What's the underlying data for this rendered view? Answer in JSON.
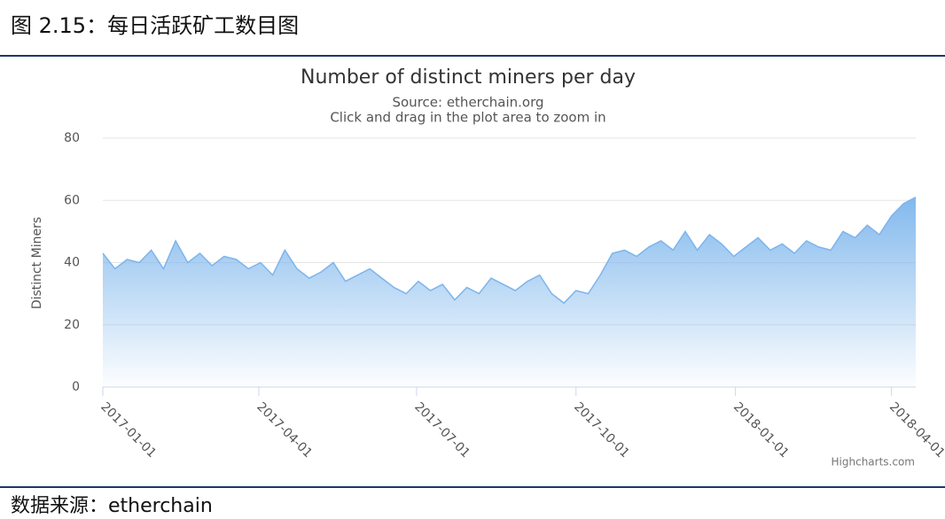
{
  "header": {
    "title": "图 2.15：每日活跃矿工数目图"
  },
  "chart_data": {
    "type": "area",
    "title": "Number of distinct miners per day",
    "subtitle": "Source: etherchain.org",
    "note": "Click and drag in the plot area to zoom in",
    "y_label": "Distinct Miners",
    "credits": "Highcharts.com",
    "color": "#7cb5ec",
    "grid": true,
    "x": [
      "2017-01-01",
      "2017-01-08",
      "2017-01-15",
      "2017-01-22",
      "2017-01-29",
      "2017-02-05",
      "2017-02-12",
      "2017-02-19",
      "2017-02-26",
      "2017-03-05",
      "2017-03-12",
      "2017-03-19",
      "2017-03-26",
      "2017-04-02",
      "2017-04-09",
      "2017-04-16",
      "2017-04-23",
      "2017-04-30",
      "2017-05-07",
      "2017-05-14",
      "2017-05-21",
      "2017-05-28",
      "2017-06-04",
      "2017-06-11",
      "2017-06-18",
      "2017-06-25",
      "2017-07-02",
      "2017-07-09",
      "2017-07-16",
      "2017-07-23",
      "2017-07-30",
      "2017-08-06",
      "2017-08-13",
      "2017-08-20",
      "2017-08-27",
      "2017-09-03",
      "2017-09-10",
      "2017-09-17",
      "2017-09-24",
      "2017-10-01",
      "2017-10-08",
      "2017-10-15",
      "2017-10-22",
      "2017-10-29",
      "2017-11-05",
      "2017-11-12",
      "2017-11-19",
      "2017-11-26",
      "2017-12-03",
      "2017-12-10",
      "2017-12-17",
      "2017-12-24",
      "2017-12-31",
      "2018-01-07",
      "2018-01-14",
      "2018-01-21",
      "2018-01-28",
      "2018-02-04",
      "2018-02-11",
      "2018-02-18",
      "2018-02-25",
      "2018-03-04",
      "2018-03-11",
      "2018-03-18",
      "2018-03-25",
      "2018-04-01",
      "2018-04-08",
      "2018-04-15"
    ],
    "values": [
      43,
      38,
      41,
      40,
      44,
      38,
      47,
      40,
      43,
      39,
      42,
      41,
      38,
      40,
      36,
      44,
      38,
      35,
      37,
      40,
      34,
      36,
      38,
      35,
      32,
      30,
      34,
      31,
      33,
      28,
      32,
      30,
      35,
      33,
      31,
      34,
      36,
      30,
      27,
      31,
      30,
      36,
      43,
      44,
      42,
      45,
      47,
      44,
      50,
      44,
      49,
      46,
      42,
      45,
      48,
      44,
      46,
      43,
      47,
      45,
      44,
      50,
      48,
      52,
      49,
      55,
      59,
      61
    ],
    "xlim": [
      "2017-01-01",
      "2018-04-15"
    ],
    "xticks": [
      "2017-01-01",
      "2017-04-01",
      "2017-07-01",
      "2017-10-01",
      "2018-01-01",
      "2018-04-01"
    ],
    "ylim": [
      0,
      80
    ],
    "yticks": [
      0,
      20,
      40,
      60,
      80
    ]
  },
  "footer": {
    "source": "数据来源：etherchain"
  }
}
